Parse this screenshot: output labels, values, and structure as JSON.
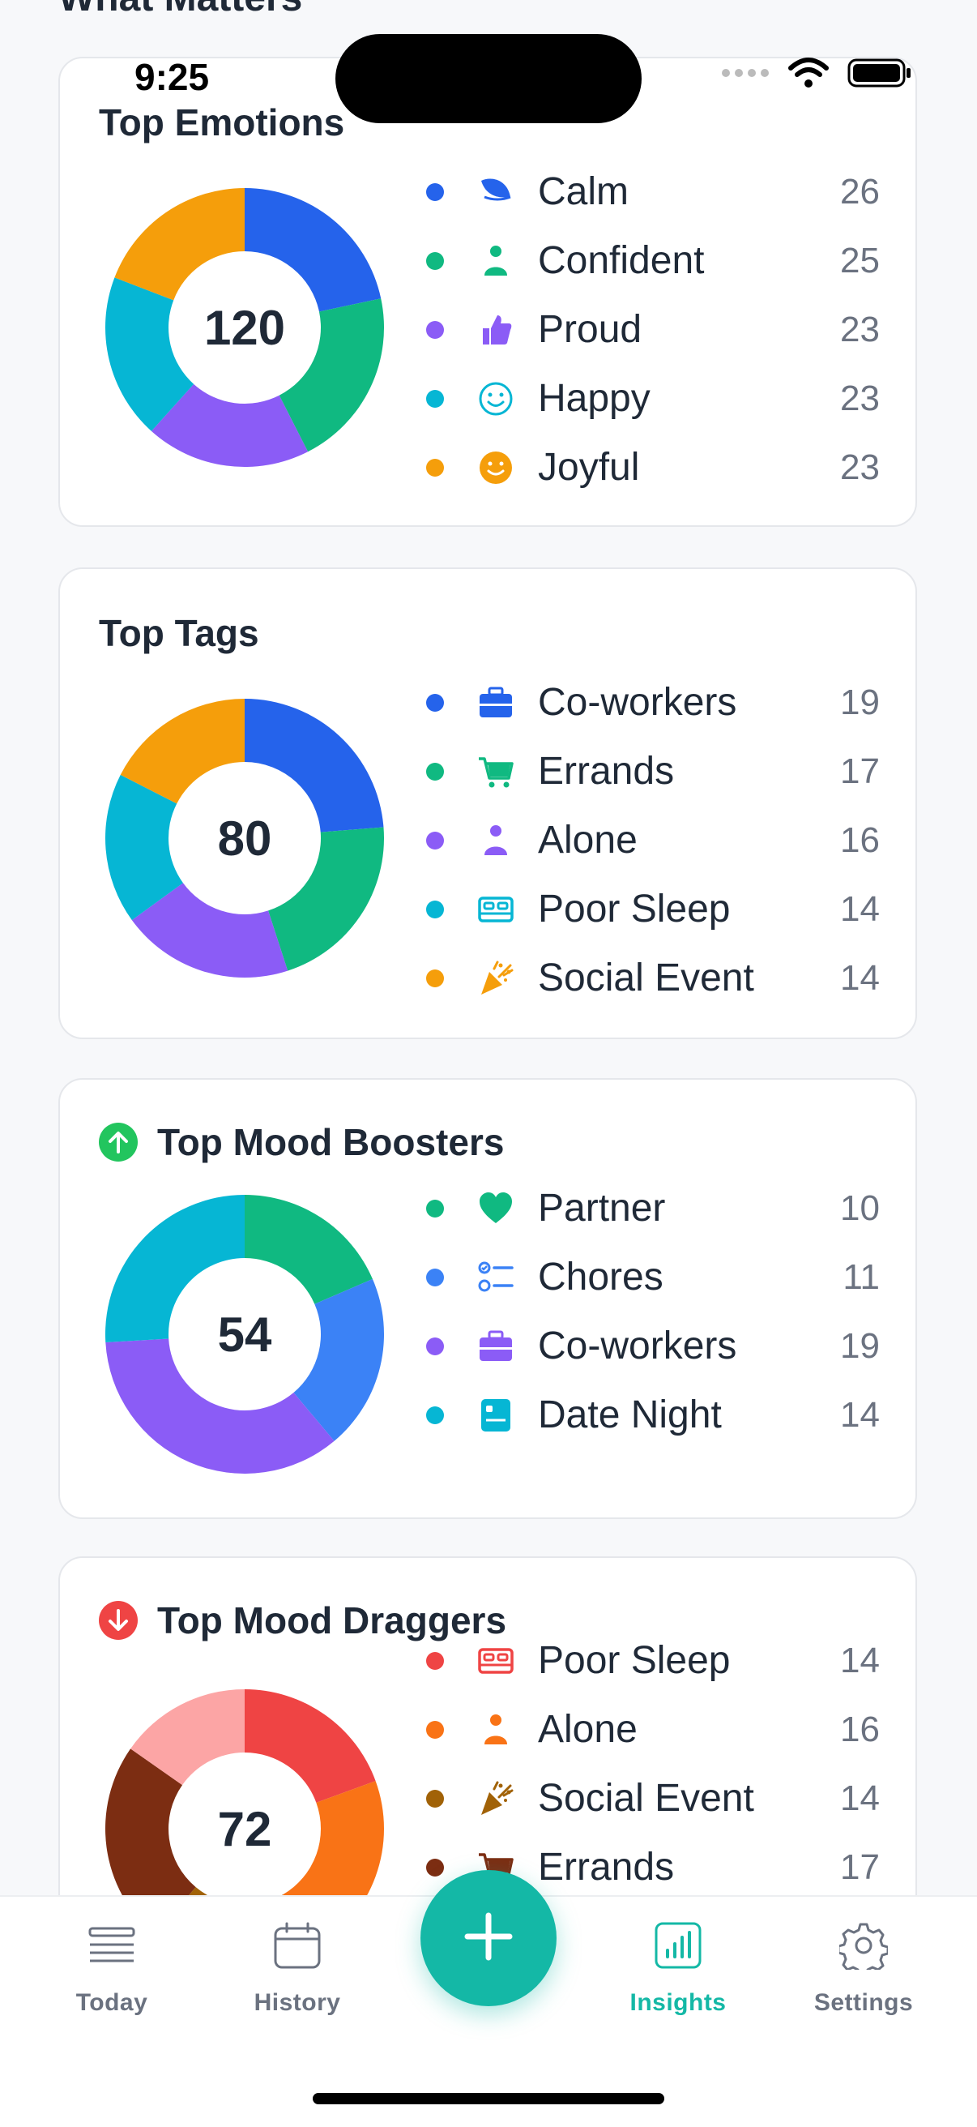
{
  "page": {
    "section_title": "What Matters"
  },
  "status_bar": {
    "time": "9:25"
  },
  "cards": {
    "emotions": {
      "title": "Top Emotions",
      "total": "120",
      "items": [
        {
          "label": "Calm",
          "count": "26",
          "color": "#2563eb",
          "icon": "leaf-icon"
        },
        {
          "label": "Confident",
          "count": "25",
          "color": "#10b981",
          "icon": "person-icon"
        },
        {
          "label": "Proud",
          "count": "23",
          "color": "#8b5cf6",
          "icon": "thumbs-up-icon"
        },
        {
          "label": "Happy",
          "count": "23",
          "color": "#06b6d4",
          "icon": "smile-icon"
        },
        {
          "label": "Joyful",
          "count": "23",
          "color": "#f59e0b",
          "icon": "face-icon"
        }
      ]
    },
    "tags": {
      "title": "Top Tags",
      "total": "80",
      "items": [
        {
          "label": "Co-workers",
          "count": "19",
          "color": "#2563eb",
          "icon": "briefcase-icon"
        },
        {
          "label": "Errands",
          "count": "17",
          "color": "#10b981",
          "icon": "cart-icon"
        },
        {
          "label": "Alone",
          "count": "16",
          "color": "#8b5cf6",
          "icon": "person-icon"
        },
        {
          "label": "Poor Sleep",
          "count": "14",
          "color": "#06b6d4",
          "icon": "bed-icon"
        },
        {
          "label": "Social Event",
          "count": "14",
          "color": "#f59e0b",
          "icon": "party-icon"
        }
      ]
    },
    "boosters": {
      "title": "Top Mood Boosters",
      "total": "54",
      "items": [
        {
          "label": "Partner",
          "count": "10",
          "color": "#10b981",
          "icon": "heart-icon"
        },
        {
          "label": "Chores",
          "count": "11",
          "color": "#3b82f6",
          "icon": "checklist-icon"
        },
        {
          "label": "Co-workers",
          "count": "19",
          "color": "#8b5cf6",
          "icon": "briefcase-icon"
        },
        {
          "label": "Date Night",
          "count": "14",
          "color": "#06b6d4",
          "icon": "card-icon"
        }
      ]
    },
    "draggers": {
      "title": "Top Mood Draggers",
      "total": "72",
      "items": [
        {
          "label": "Poor Sleep",
          "count": "14",
          "color": "#ef4444",
          "icon": "bed-icon"
        },
        {
          "label": "Alone",
          "count": "16",
          "color": "#f97316",
          "icon": "person-icon"
        },
        {
          "label": "Social Event",
          "count": "14",
          "color": "#a16207",
          "icon": "party-icon"
        },
        {
          "label": "Errands",
          "count": "17",
          "color": "#7c2d12",
          "icon": "cart-icon"
        }
      ],
      "extra_slice_color": "#fca5a5"
    }
  },
  "tabbar": {
    "today": "Today",
    "history": "History",
    "insights": "Insights",
    "settings": "Settings"
  },
  "colors": {
    "accent": "#14b8a6",
    "booster_badge": "#22c55e",
    "dragger_badge": "#ef4444"
  }
}
